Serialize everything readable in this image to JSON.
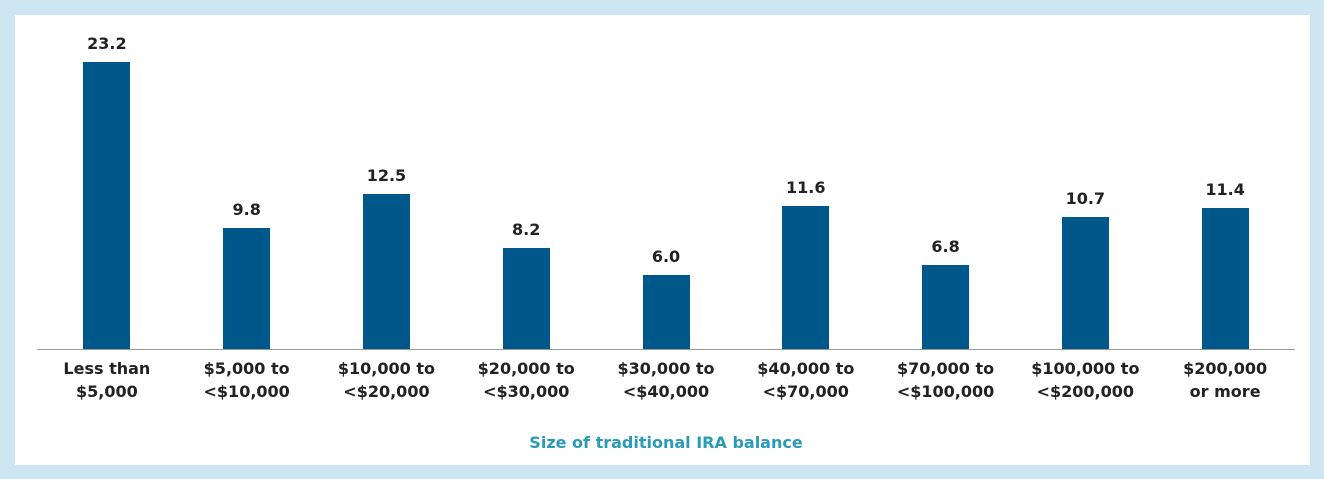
{
  "chart_data": {
    "type": "bar",
    "x_label": "Size of traditional IRA balance",
    "categories": [
      "Less than\n$5,000",
      "$5,000 to\n<$10,000",
      "$10,000 to\n<$20,000",
      "$20,000 to\n<$30,000",
      "$30,000 to\n<$40,000",
      "$40,000 to\n<$70,000",
      "$70,000 to\n<$100,000",
      "$100,000 to\n<$200,000",
      "$200,000\nor more"
    ],
    "values": [
      23.2,
      9.8,
      12.5,
      8.2,
      6.0,
      11.6,
      6.8,
      10.7,
      11.4
    ],
    "value_labels": [
      "23.2",
      "9.8",
      "12.5",
      "8.2",
      "6.0",
      "11.6",
      "6.8",
      "10.7",
      "11.4"
    ],
    "color": "#00578a",
    "x_label_color": "#2a9bb5"
  }
}
